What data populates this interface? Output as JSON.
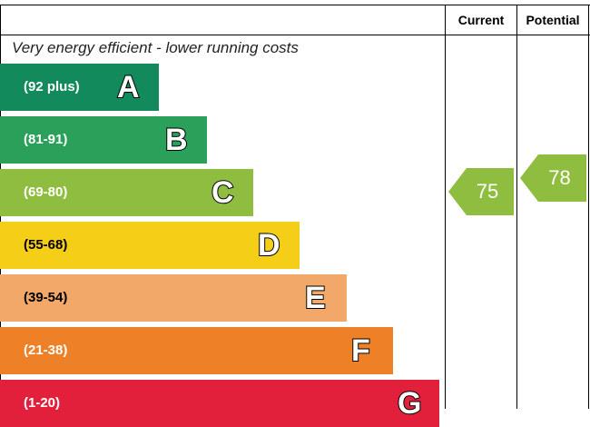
{
  "header": {
    "current_label": "Current",
    "potential_label": "Potential"
  },
  "subtitle": "Very energy efficient - lower running costs",
  "chart_data": {
    "type": "bar",
    "bands": [
      {
        "letter": "A",
        "range": "(92 plus)",
        "color": "#138a5b"
      },
      {
        "letter": "B",
        "range": "(81-91)",
        "color": "#2aa05a"
      },
      {
        "letter": "C",
        "range": "(69-80)",
        "color": "#8fbd40"
      },
      {
        "letter": "D",
        "range": "(55-68)",
        "color": "#f5ce18"
      },
      {
        "letter": "E",
        "range": "(39-54)",
        "color": "#f2a868"
      },
      {
        "letter": "F",
        "range": "(21-38)",
        "color": "#ee8127"
      },
      {
        "letter": "G",
        "range": "(1-20)",
        "color": "#e3203b"
      }
    ],
    "current": {
      "value": 75,
      "band": "C",
      "color": "#8fbd40"
    },
    "potential": {
      "value": 78,
      "band": "C",
      "color": "#8fbd40"
    }
  }
}
